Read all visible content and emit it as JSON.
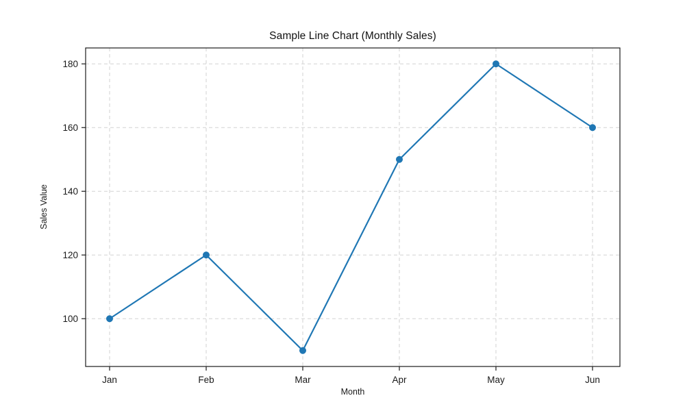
{
  "chart_data": {
    "type": "line",
    "title": "Sample Line Chart (Monthly Sales)",
    "xlabel": "Month",
    "ylabel": "Sales Value",
    "categories": [
      "Jan",
      "Feb",
      "Mar",
      "Apr",
      "May",
      "Jun"
    ],
    "series": [
      {
        "name": "Monthly Sales",
        "values": [
          100,
          120,
          90,
          150,
          180,
          160
        ]
      }
    ],
    "yticks": [
      100,
      120,
      140,
      160,
      180
    ],
    "ylim": [
      85,
      185
    ],
    "grid": true,
    "grid_style": "dashed",
    "legend_position": "none",
    "line_color": "#1f77b4",
    "marker": "circle",
    "marker_radius": 5,
    "background_color": "#ffffff"
  }
}
